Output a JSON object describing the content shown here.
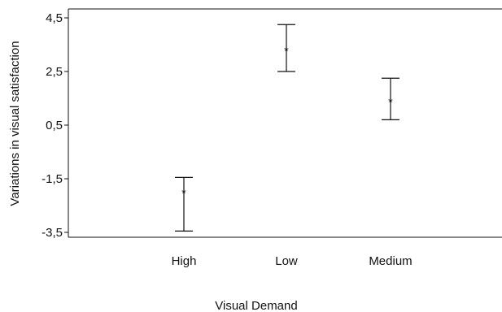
{
  "chart_data": {
    "type": "scatter",
    "title": "",
    "xlabel": "Visual Demand",
    "ylabel": "Variations in visual satisfaction",
    "categories": [
      "High",
      "Low",
      "Medium"
    ],
    "ylim": [
      -3.5,
      4.5
    ],
    "yticks": [
      4.5,
      2.5,
      0.5,
      -1.5,
      -3.5
    ],
    "ytick_labels": [
      "4,5",
      "2,5",
      "0,5",
      "-1,5",
      "-3,5"
    ],
    "series": [
      {
        "values": [
          -2.0,
          3.3,
          1.4
        ],
        "error_low": [
          -3.45,
          2.5,
          0.7
        ],
        "error_high": [
          -1.45,
          4.25,
          2.25
        ]
      }
    ],
    "marker": "*",
    "grid": false
  }
}
